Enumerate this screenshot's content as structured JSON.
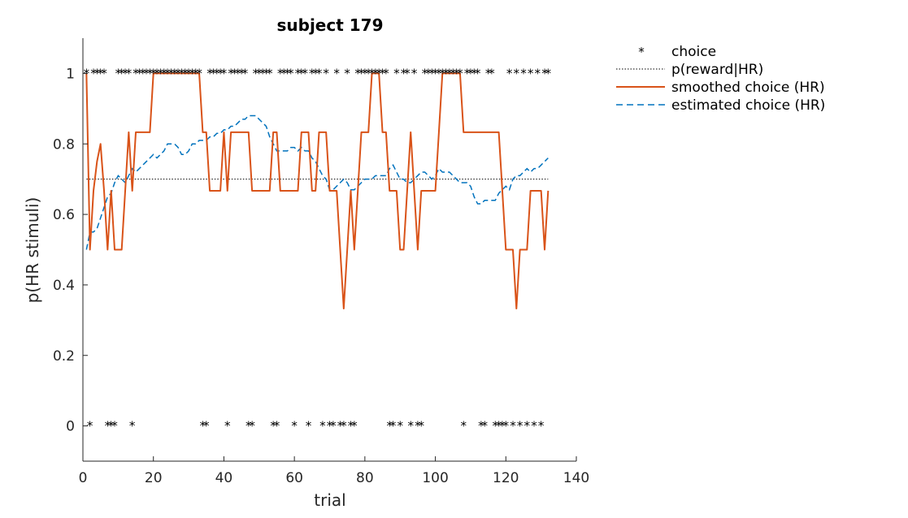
{
  "chart_data": {
    "type": "line",
    "title": "subject 179",
    "xlabel": "trial",
    "ylabel": "p(HR stimuli)",
    "xlim": [
      0,
      140
    ],
    "ylim": [
      -0.1,
      1.1
    ],
    "xticks": [
      0,
      20,
      40,
      60,
      80,
      100,
      120,
      140
    ],
    "yticks": [
      0,
      0.2,
      0.4,
      0.6,
      0.8,
      1
    ],
    "ytick_labels": [
      "0",
      "0.2",
      "0.4",
      "0.6",
      "0.8",
      "1"
    ],
    "grid": false,
    "legend_position": "outside-top-right",
    "colors": {
      "choice": "#000000",
      "reward": "#000000",
      "smoothed": "#d95319",
      "estimated": "#0072bd"
    },
    "series": [
      {
        "name": "choice",
        "style": "asterisk-markers",
        "x": [
          1,
          2,
          3,
          4,
          5,
          6,
          7,
          8,
          9,
          10,
          11,
          12,
          13,
          14,
          15,
          16,
          17,
          18,
          19,
          20,
          21,
          22,
          23,
          24,
          25,
          26,
          27,
          28,
          29,
          30,
          31,
          32,
          33,
          34,
          35,
          36,
          37,
          38,
          39,
          40,
          41,
          42,
          43,
          44,
          45,
          46,
          47,
          48,
          49,
          50,
          51,
          52,
          53,
          54,
          55,
          56,
          57,
          58,
          59,
          60,
          61,
          62,
          63,
          64,
          65,
          66,
          67,
          68,
          69,
          70,
          71,
          72,
          73,
          74,
          75,
          76,
          77,
          78,
          79,
          80,
          81,
          82,
          83,
          84,
          85,
          86,
          87,
          88,
          89,
          90,
          91,
          92,
          93,
          94,
          95,
          96,
          97,
          98,
          99,
          100,
          101,
          102,
          103,
          104,
          105,
          106,
          107,
          108,
          109,
          110,
          111,
          112,
          113,
          114,
          115,
          116,
          117,
          118,
          119,
          120,
          121,
          122,
          123,
          124,
          125,
          126,
          127,
          128,
          129,
          130,
          131,
          132
        ],
        "y": [
          1,
          0,
          1,
          1,
          1,
          1,
          0,
          0,
          0,
          1,
          1,
          1,
          1,
          0,
          1,
          1,
          1,
          1,
          1,
          1,
          1,
          1,
          1,
          1,
          1,
          1,
          1,
          1,
          1,
          1,
          1,
          1,
          1,
          0,
          0,
          1,
          1,
          1,
          1,
          1,
          0,
          1,
          1,
          1,
          1,
          1,
          0,
          0,
          1,
          1,
          1,
          1,
          1,
          0,
          0,
          1,
          1,
          1,
          1,
          0,
          1,
          1,
          1,
          0,
          1,
          1,
          1,
          0,
          1,
          0,
          0,
          1,
          0,
          0,
          1,
          0,
          0,
          1,
          1,
          1,
          1,
          1,
          1,
          1,
          1,
          1,
          0,
          0,
          1,
          0,
          1,
          1,
          0,
          1,
          0,
          0,
          1,
          1,
          1,
          1,
          1,
          1,
          1,
          1,
          1,
          1,
          1,
          0,
          1,
          1,
          1,
          1,
          0,
          0,
          1,
          1,
          0,
          0,
          0,
          0,
          1,
          0,
          1,
          0,
          1,
          0,
          1,
          0,
          1,
          0,
          1,
          1
        ]
      },
      {
        "name": "p(reward|HR)",
        "style": "dotted",
        "x": [
          1,
          132
        ],
        "y": [
          0.7,
          0.7
        ]
      },
      {
        "name": "smoothed choice (HR)",
        "style": "solid",
        "x": [
          1,
          2,
          3,
          4,
          5,
          6,
          7,
          8,
          9,
          10,
          11,
          12,
          13,
          14,
          15,
          16,
          17,
          18,
          19,
          20,
          21,
          22,
          23,
          24,
          25,
          26,
          27,
          28,
          29,
          30,
          31,
          32,
          33,
          34,
          35,
          36,
          37,
          38,
          39,
          40,
          41,
          42,
          43,
          44,
          45,
          46,
          47,
          48,
          49,
          50,
          51,
          52,
          53,
          54,
          55,
          56,
          57,
          58,
          59,
          60,
          61,
          62,
          63,
          64,
          65,
          66,
          67,
          68,
          69,
          70,
          71,
          72,
          73,
          74,
          75,
          76,
          77,
          78,
          79,
          80,
          81,
          82,
          83,
          84,
          85,
          86,
          87,
          88,
          89,
          90,
          91,
          92,
          93,
          94,
          95,
          96,
          97,
          98,
          99,
          100,
          101,
          102,
          103,
          104,
          105,
          106,
          107,
          108,
          109,
          110,
          111,
          112,
          113,
          114,
          115,
          116,
          117,
          118,
          119,
          120,
          121,
          122,
          123,
          124,
          125,
          126,
          127,
          128,
          129,
          130,
          131,
          132
        ],
        "y": [
          1,
          0.5,
          0.667,
          0.75,
          0.8,
          0.667,
          0.5,
          0.667,
          0.5,
          0.5,
          0.5,
          0.667,
          0.833,
          0.667,
          0.833,
          0.833,
          0.833,
          0.833,
          0.833,
          1,
          1,
          1,
          1,
          1,
          1,
          1,
          1,
          1,
          1,
          1,
          1,
          1,
          1,
          0.833,
          0.833,
          0.667,
          0.667,
          0.667,
          0.667,
          0.833,
          0.667,
          0.833,
          0.833,
          0.833,
          0.833,
          0.833,
          0.833,
          0.667,
          0.667,
          0.667,
          0.667,
          0.667,
          0.667,
          0.833,
          0.833,
          0.667,
          0.667,
          0.667,
          0.667,
          0.667,
          0.667,
          0.833,
          0.833,
          0.833,
          0.667,
          0.667,
          0.833,
          0.833,
          0.833,
          0.667,
          0.667,
          0.667,
          0.5,
          0.333,
          0.5,
          0.667,
          0.5,
          0.667,
          0.833,
          0.833,
          0.833,
          1,
          1,
          1,
          0.833,
          0.833,
          0.667,
          0.667,
          0.667,
          0.5,
          0.5,
          0.667,
          0.833,
          0.667,
          0.5,
          0.667,
          0.667,
          0.667,
          0.667,
          0.667,
          0.833,
          1,
          1,
          1,
          1,
          1,
          1,
          0.833,
          0.833,
          0.833,
          0.833,
          0.833,
          0.833,
          0.833,
          0.833,
          0.833,
          0.833,
          0.833,
          0.667,
          0.5,
          0.5,
          0.5,
          0.333,
          0.5,
          0.5,
          0.5,
          0.667,
          0.667,
          0.667,
          0.667,
          0.5,
          0.667
        ]
      },
      {
        "name": "estimated choice (HR)",
        "style": "dashed",
        "x": [
          1,
          2,
          3,
          4,
          5,
          6,
          7,
          8,
          9,
          10,
          11,
          12,
          13,
          14,
          15,
          16,
          17,
          18,
          19,
          20,
          21,
          22,
          23,
          24,
          25,
          26,
          27,
          28,
          29,
          30,
          31,
          32,
          33,
          34,
          35,
          36,
          37,
          38,
          39,
          40,
          41,
          42,
          43,
          44,
          45,
          46,
          47,
          48,
          49,
          50,
          51,
          52,
          53,
          54,
          55,
          56,
          57,
          58,
          59,
          60,
          61,
          62,
          63,
          64,
          65,
          66,
          67,
          68,
          69,
          70,
          71,
          72,
          73,
          74,
          75,
          76,
          77,
          78,
          79,
          80,
          81,
          82,
          83,
          84,
          85,
          86,
          87,
          88,
          89,
          90,
          91,
          92,
          93,
          94,
          95,
          96,
          97,
          98,
          99,
          100,
          101,
          102,
          103,
          104,
          105,
          106,
          107,
          108,
          109,
          110,
          111,
          112,
          113,
          114,
          115,
          116,
          117,
          118,
          119,
          120,
          121,
          122,
          123,
          124,
          125,
          126,
          127,
          128,
          129,
          130,
          131,
          132
        ],
        "y": [
          0.5,
          0.55,
          0.55,
          0.56,
          0.59,
          0.62,
          0.65,
          0.66,
          0.69,
          0.71,
          0.7,
          0.69,
          0.71,
          0.73,
          0.72,
          0.73,
          0.74,
          0.75,
          0.76,
          0.77,
          0.76,
          0.77,
          0.78,
          0.8,
          0.8,
          0.8,
          0.79,
          0.77,
          0.77,
          0.78,
          0.8,
          0.8,
          0.81,
          0.81,
          0.81,
          0.82,
          0.82,
          0.83,
          0.83,
          0.84,
          0.84,
          0.85,
          0.85,
          0.86,
          0.87,
          0.87,
          0.88,
          0.88,
          0.88,
          0.87,
          0.86,
          0.85,
          0.82,
          0.8,
          0.78,
          0.78,
          0.78,
          0.78,
          0.79,
          0.79,
          0.78,
          0.79,
          0.78,
          0.78,
          0.76,
          0.75,
          0.73,
          0.71,
          0.7,
          0.67,
          0.67,
          0.68,
          0.69,
          0.7,
          0.69,
          0.67,
          0.67,
          0.68,
          0.69,
          0.7,
          0.7,
          0.7,
          0.71,
          0.71,
          0.71,
          0.71,
          0.73,
          0.74,
          0.72,
          0.7,
          0.7,
          0.69,
          0.69,
          0.7,
          0.71,
          0.72,
          0.72,
          0.71,
          0.7,
          0.71,
          0.73,
          0.72,
          0.72,
          0.72,
          0.71,
          0.7,
          0.69,
          0.69,
          0.69,
          0.68,
          0.65,
          0.63,
          0.63,
          0.64,
          0.64,
          0.64,
          0.64,
          0.66,
          0.67,
          0.68,
          0.67,
          0.7,
          0.71,
          0.71,
          0.72,
          0.73,
          0.72,
          0.73,
          0.73,
          0.74,
          0.75,
          0.76
        ]
      }
    ]
  }
}
